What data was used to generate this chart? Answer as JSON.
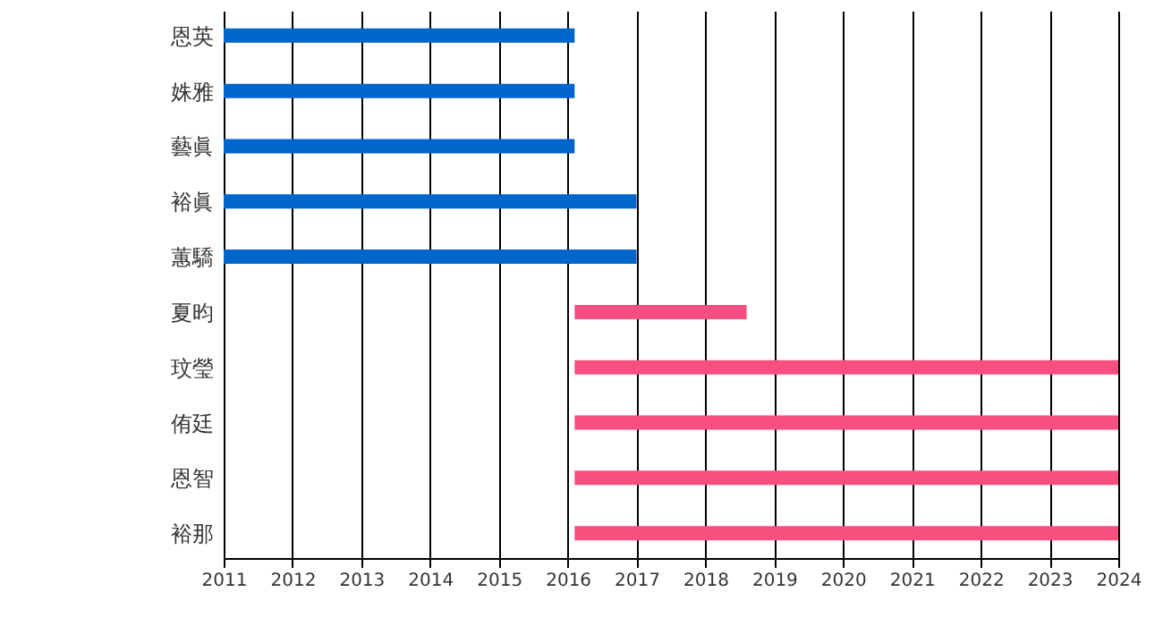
{
  "chart_data": {
    "type": "bar",
    "orientation": "horizontal",
    "categories": [
      "恩英",
      "姝雅",
      "藝眞",
      "裕眞",
      "蕙驕",
      "夏昀",
      "玟瑩",
      "侑廷",
      "恩智",
      "裕那"
    ],
    "base": [
      2011,
      2011,
      2011,
      2011,
      2011,
      2016.1,
      2016.1,
      2016.1,
      2016.1,
      2016.1
    ],
    "values": [
      5.1,
      5.1,
      5.1,
      6.0,
      6.0,
      2.5,
      7.9,
      7.9,
      7.9,
      7.9
    ],
    "colors": [
      "#0066cc",
      "#0066cc",
      "#0066cc",
      "#0066cc",
      "#0066cc",
      "#f75080",
      "#f75080",
      "#f75080",
      "#f75080",
      "#f75080"
    ],
    "xlim": [
      2011,
      2024
    ],
    "xticks": [
      2011,
      2012,
      2013,
      2014,
      2015,
      2016,
      2017,
      2018,
      2019,
      2020,
      2021,
      2022,
      2023,
      2024
    ],
    "grid": "x"
  }
}
